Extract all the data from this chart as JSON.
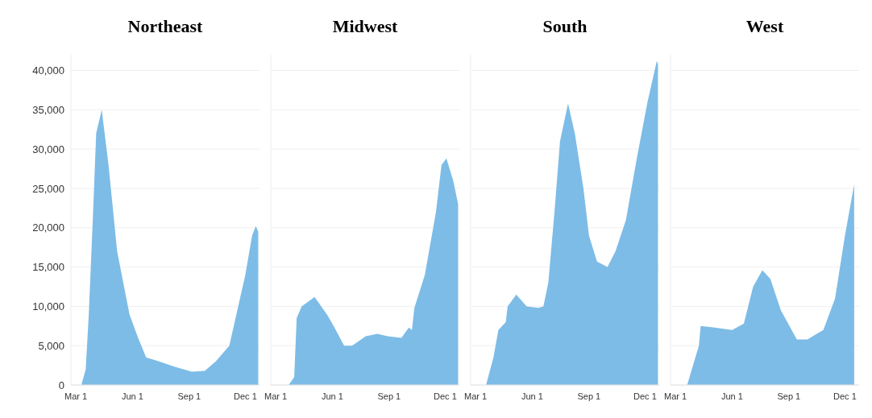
{
  "chart_data": [
    {
      "type": "area",
      "title": "Northeast",
      "color": "#7dbce6",
      "grid": "y",
      "xlim": [
        "--02-22",
        "--12-24"
      ],
      "ylim": [
        0,
        42000
      ],
      "xticks": [
        {
          "value": "--03-01",
          "label": "Mar 1"
        },
        {
          "value": "--06-01",
          "label": "Jun 1"
        },
        {
          "value": "--09-01",
          "label": "Sep 1"
        },
        {
          "value": "--12-01",
          "label": "Dec 1"
        }
      ],
      "yticks": [
        0,
        {
          "value": 5000,
          "label": "5,000"
        },
        {
          "value": 10000,
          "label": "10,000"
        },
        {
          "value": 15000,
          "label": "15,000"
        },
        {
          "value": 20000,
          "label": "20,000"
        },
        {
          "value": 25000,
          "label": "25,000"
        },
        {
          "value": 30000,
          "label": "30,000"
        },
        {
          "value": 35000,
          "label": "35,000"
        },
        {
          "value": 40000,
          "label": "40,000"
        }
      ],
      "x": [
        "--03-10",
        "--03-17",
        "--03-22",
        "--03-29",
        "--04-03",
        "--04-12",
        "--04-23",
        "--05-07",
        "--05-27",
        "--06-10",
        "--06-23",
        "--07-14",
        "--08-09",
        "--09-05",
        "--09-26",
        "--10-14",
        "--11-05",
        "--11-18",
        "--12-01",
        "--12-12",
        "--12-18",
        "--12-22"
      ],
      "values": [
        0,
        2000,
        9000,
        22000,
        32000,
        35000,
        28000,
        17000,
        9000,
        6000,
        3500,
        3000,
        2300,
        1700,
        1800,
        3000,
        5000,
        9500,
        14000,
        19000,
        20200,
        19500
      ]
    },
    {
      "type": "area",
      "title": "Midwest",
      "color": "#7dbce6",
      "grid": "y",
      "tick_labels": "x",
      "xlim": [
        "--02-22",
        "--12-24"
      ],
      "ylim": [
        0,
        42000
      ],
      "xticks": [
        {
          "value": "--03-01",
          "label": "Mar 1"
        },
        {
          "value": "--06-01",
          "label": "Jun 1"
        },
        {
          "value": "--09-01",
          "label": "Sep 1"
        },
        {
          "value": "--12-01",
          "label": "Dec 1"
        }
      ],
      "yticks": [
        0,
        5000,
        10000,
        15000,
        20000,
        25000,
        30000,
        35000,
        40000
      ],
      "x": [
        "--03-22",
        "--03-31",
        "--04-04",
        "--04-12",
        "--05-03",
        "--05-23",
        "--06-03",
        "--06-20",
        "--07-03",
        "--07-25",
        "--08-13",
        "--08-30",
        "--09-21",
        "--10-03",
        "--10-08",
        "--10-12",
        "--10-29",
        "--11-16",
        "--11-25",
        "--12-03",
        "--12-14",
        "--12-22"
      ],
      "values": [
        0,
        1000,
        8500,
        10000,
        11200,
        9000,
        7500,
        5000,
        5000,
        6200,
        6500,
        6200,
        6000,
        7300,
        7000,
        9800,
        14000,
        22000,
        28000,
        28800,
        26000,
        23000
      ]
    },
    {
      "type": "area",
      "title": "South",
      "color": "#7dbce6",
      "grid": "y",
      "tick_labels": "x",
      "xlim": [
        "--02-22",
        "--12-24"
      ],
      "ylim": [
        0,
        42000
      ],
      "xticks": [
        {
          "value": "--03-01",
          "label": "Mar 1"
        },
        {
          "value": "--06-01",
          "label": "Jun 1"
        },
        {
          "value": "--09-01",
          "label": "Sep 1"
        },
        {
          "value": "--12-01",
          "label": "Dec 1"
        }
      ],
      "yticks": [
        0,
        5000,
        10000,
        15000,
        20000,
        25000,
        30000,
        35000,
        40000
      ],
      "x": [
        "--03-18",
        "--03-30",
        "--04-07",
        "--04-19",
        "--04-22",
        "--05-06",
        "--05-23",
        "--06-11",
        "--06-19",
        "--06-27",
        "--07-07",
        "--07-16",
        "--07-29",
        "--08-09",
        "--08-23",
        "--09-01",
        "--09-14",
        "--10-01",
        "--10-14",
        "--10-31",
        "--11-18",
        "--12-05",
        "--12-20",
        "--12-22"
      ],
      "values": [
        0,
        3500,
        7000,
        8000,
        10000,
        11500,
        10000,
        9800,
        10000,
        13000,
        22000,
        31000,
        35800,
        32000,
        25000,
        19000,
        15700,
        15000,
        17000,
        21000,
        29000,
        36000,
        41200,
        40800
      ]
    },
    {
      "type": "area",
      "title": "West",
      "color": "#7dbce6",
      "grid": "y",
      "tick_labels": "x",
      "xlim": [
        "--02-22",
        "--12-24"
      ],
      "ylim": [
        0,
        42000
      ],
      "xticks": [
        {
          "value": "--03-01",
          "label": "Mar 1"
        },
        {
          "value": "--06-01",
          "label": "Jun 1"
        },
        {
          "value": "--09-01",
          "label": "Sep 1"
        },
        {
          "value": "--12-01",
          "label": "Dec 1"
        }
      ],
      "yticks": [
        0,
        5000,
        10000,
        15000,
        20000,
        25000,
        30000,
        35000,
        40000
      ],
      "x": [
        "--03-20",
        "--04-08",
        "--04-11",
        "--05-04",
        "--06-01",
        "--06-20",
        "--07-05",
        "--07-20",
        "--08-02",
        "--08-19",
        "--09-14",
        "--10-01",
        "--10-27",
        "--11-15",
        "--12-01",
        "--12-16"
      ],
      "values": [
        0,
        5000,
        7500,
        7300,
        7000,
        7800,
        12500,
        14600,
        13500,
        9500,
        5800,
        5800,
        7000,
        11000,
        19000,
        25500
      ]
    }
  ]
}
